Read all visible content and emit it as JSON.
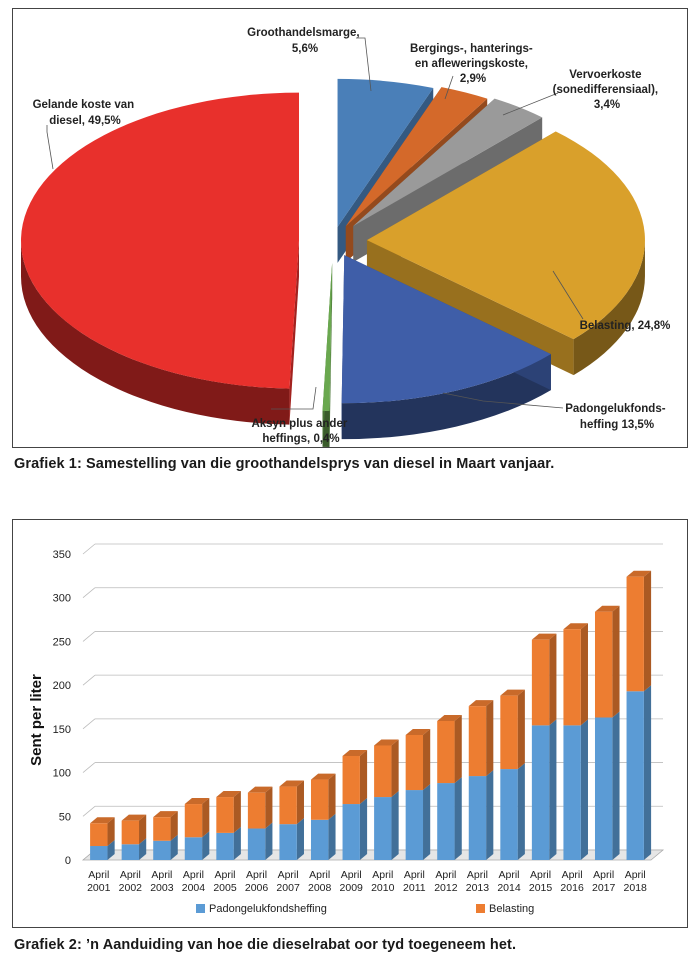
{
  "chart_data": [
    {
      "type": "pie",
      "title": "",
      "slices": [
        {
          "label": "Groothandelsmarge",
          "value_text": "5,6%",
          "value": 5.6,
          "color": "#4a7fb8"
        },
        {
          "label": "Bergings-, hanterings- en afleweringskoste",
          "value_text": "2,9%",
          "value": 2.9,
          "color": "#d4692a"
        },
        {
          "label": "Vervoerkoste (sonedifferensiaal)",
          "value_text": "3,4%",
          "value": 3.4,
          "color": "#9a9a9a"
        },
        {
          "label": "Belasting",
          "value_text": "24,8%",
          "value": 24.8,
          "color": "#d9a02b"
        },
        {
          "label": "Padongelukfonds-heffing",
          "value_text": "13,5%",
          "value": 13.5,
          "color": "#3f5ea8"
        },
        {
          "label": "Aksyn plus ander heffings",
          "value_text": "0,4%",
          "value": 0.4,
          "color": "#6aa84f"
        },
        {
          "label": "Gelande koste van diesel",
          "value_text": "49,5%",
          "value": 49.5,
          "color": "#e8302c"
        }
      ],
      "label_lines": {
        "groothandel": [
          "Groothandelsmarge,",
          "5,6%"
        ],
        "berging": [
          "Bergings-, hanterings-",
          "en afleweringskoste,",
          "2,9%"
        ],
        "vervoer": [
          "Vervoerkoste",
          "(sonedifferensiaal),",
          "3,4%"
        ],
        "belasting": [
          "Belasting, 24,8%"
        ],
        "padongeluk": [
          "Padongelukfonds-",
          "heffing 13,5%"
        ],
        "aksyn": [
          "Aksyn plus ander",
          "heffings, 0,4%"
        ],
        "gelande": [
          "Gelande koste van",
          "diesel, 49,5%"
        ]
      }
    },
    {
      "type": "bar",
      "stacked": true,
      "ylabel": "Sent per liter",
      "ylim": [
        0,
        350
      ],
      "yticks": [
        0,
        50,
        100,
        150,
        200,
        250,
        300,
        350
      ],
      "grid": true,
      "legend_position": "bottom",
      "categories": [
        "April 2001",
        "April 2002",
        "April 2003",
        "April 2004",
        "April 2005",
        "April 2006",
        "April 2007",
        "April 2008",
        "April 2009",
        "April 2010",
        "April 2011",
        "April 2012",
        "April 2013",
        "April 2014",
        "April 2015",
        "April 2016",
        "April 2017",
        "April 2018"
      ],
      "category_lines": [
        [
          "April",
          "2001"
        ],
        [
          "April",
          "2002"
        ],
        [
          "April",
          "2003"
        ],
        [
          "April",
          "2004"
        ],
        [
          "April",
          "2005"
        ],
        [
          "April",
          "2006"
        ],
        [
          "April",
          "2007"
        ],
        [
          "April",
          "2008"
        ],
        [
          "April",
          "2009"
        ],
        [
          "April",
          "2010"
        ],
        [
          "April",
          "2011"
        ],
        [
          "April",
          "2012"
        ],
        [
          "April",
          "2013"
        ],
        [
          "April",
          "2014"
        ],
        [
          "April",
          "2015"
        ],
        [
          "April",
          "2016"
        ],
        [
          "April",
          "2017"
        ],
        [
          "April",
          "2018"
        ]
      ],
      "series": [
        {
          "name": "Padongelukfondsheffing",
          "color": "#5b9bd5",
          "values": [
            16,
            18,
            22,
            26,
            31,
            36,
            41,
            46,
            64,
            72,
            80,
            88,
            96,
            104,
            154,
            154,
            163,
            193
          ]
        },
        {
          "name": "Belasting",
          "color": "#ed7d31",
          "values": [
            26,
            27,
            27,
            38,
            41,
            41,
            43,
            46,
            55,
            59,
            63,
            71,
            80,
            84,
            98,
            110,
            121,
            131
          ]
        }
      ]
    }
  ],
  "captions": {
    "grafiek1": "Grafiek 1: Samestelling van die groothandelsprys van diesel in Maart vanjaar.",
    "grafiek2": "Grafiek 2: ’n Aanduiding van hoe die dieselrabat oor tyd toegeneem het."
  }
}
